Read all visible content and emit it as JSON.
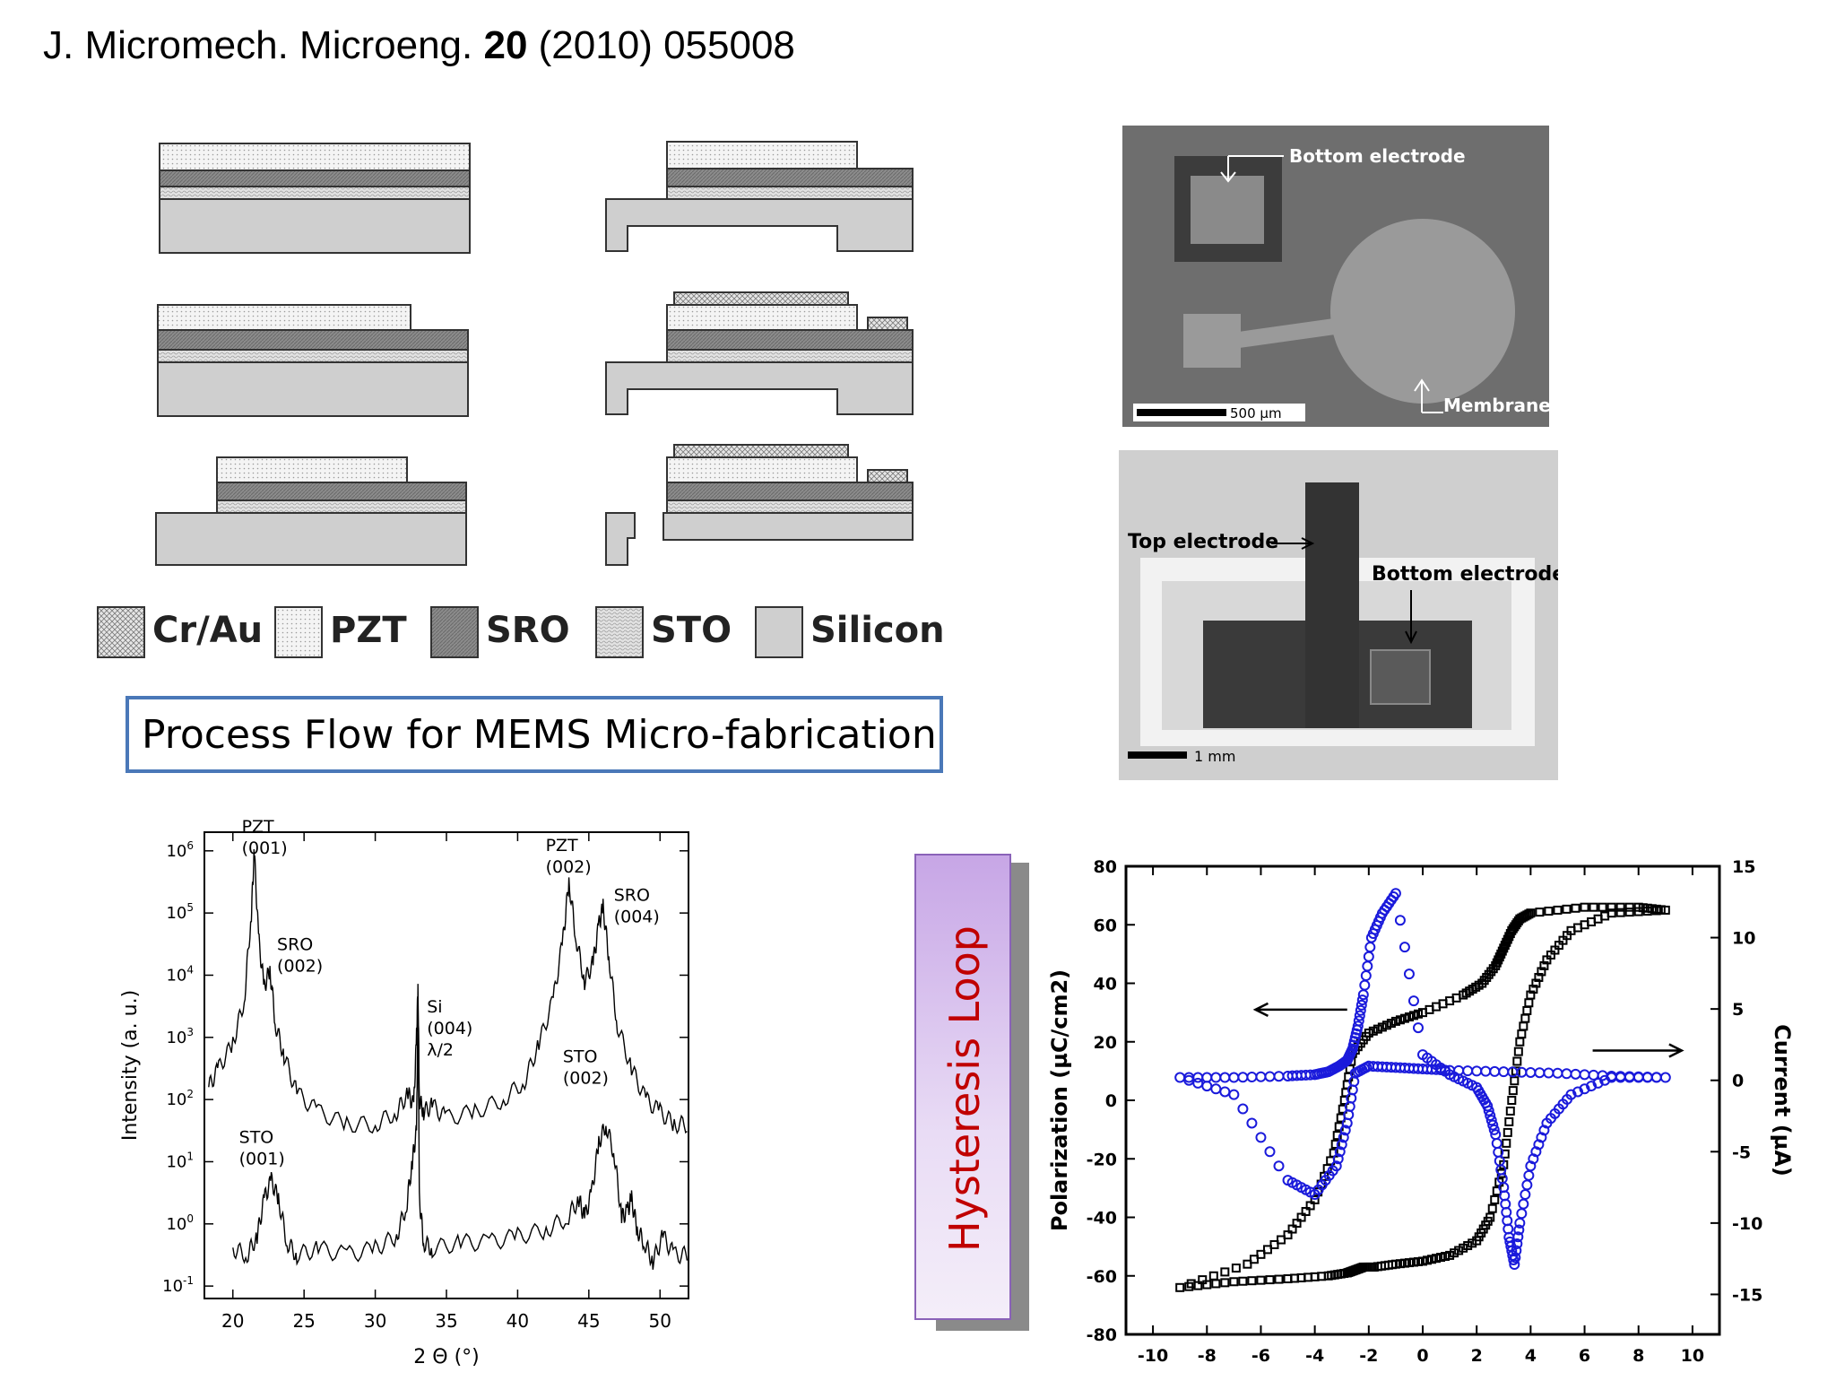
{
  "citation": {
    "journal": "J. Micromech. Microeng.",
    "volume": "20",
    "rest": "(2010) 055008"
  },
  "legend": [
    {
      "label": "Cr/Au",
      "pattern": "crosshatch"
    },
    {
      "label": "PZT",
      "pattern": "dots"
    },
    {
      "label": "SRO",
      "pattern": "dense-hatch"
    },
    {
      "label": "STO",
      "pattern": "wave-hatch"
    },
    {
      "label": "Silicon",
      "pattern": "solid"
    }
  ],
  "process_title": "Process Flow for MEMS Micro-fabrication",
  "micrograph_top": {
    "bottom_electrode": "Bottom electrode",
    "membrane": "Membrane",
    "scale": "500 µm"
  },
  "micrograph_bottom": {
    "top_electrode": "Top electrode",
    "bottom_electrode": "Bottom electrode",
    "scale": "1 mm"
  },
  "hysteresis_banner": "Hysteresis Loop",
  "chart_data": [
    {
      "type": "line",
      "title": "",
      "xlabel": "2 Θ (°)",
      "ylabel": "Intensity (a. u.)",
      "xlim": [
        18,
        52
      ],
      "ylim_log10": [
        -1.2,
        6.3
      ],
      "yscale": "log",
      "xticks": [
        "20",
        "25",
        "30",
        "35",
        "40",
        "45",
        "50"
      ],
      "yticks": [
        "10-1",
        "100",
        "101",
        "102",
        "103",
        "104",
        "105",
        "106"
      ],
      "peak_labels": [
        {
          "text1": "PZT",
          "text2": "(001)",
          "x": 21.5
        },
        {
          "text1": "SRO",
          "text2": "(002)",
          "x": 22.6
        },
        {
          "text1": "Si",
          "text2": "(004)",
          "text3": "λ/2",
          "x": 33.0
        },
        {
          "text1": "PZT",
          "text2": "(002)",
          "x": 43.6
        },
        {
          "text1": "SRO",
          "text2": "(004)",
          "x": 46.0
        },
        {
          "text1": "STO",
          "text2": "(001)",
          "x": 22.7
        },
        {
          "text1": "STO",
          "text2": "(002)",
          "x": 46.2
        }
      ],
      "series": [
        {
          "x": [
            18.3,
            19,
            20,
            20.8,
            21.3,
            21.5,
            21.8,
            22.2,
            22.6,
            23,
            23.6,
            24.5,
            26,
            28,
            30,
            31.5,
            32.3,
            32.7,
            32.9,
            33.0,
            33.1,
            33.4,
            34,
            35,
            37,
            39,
            40.5,
            41.5,
            42.5,
            43.2,
            43.6,
            44.1,
            44.7,
            45.3,
            45.7,
            46.0,
            46.4,
            47,
            48,
            49,
            50,
            51,
            52
          ],
          "y": [
            2.2,
            2.5,
            2.9,
            3.6,
            5.0,
            6.0,
            4.6,
            3.8,
            4.1,
            3.2,
            2.7,
            2.1,
            1.8,
            1.6,
            1.6,
            1.8,
            2.1,
            1.9,
            3.0,
            3.8,
            2.0,
            1.8,
            1.9,
            1.7,
            1.8,
            2.0,
            2.3,
            2.9,
            3.6,
            4.6,
            5.5,
            4.6,
            3.9,
            4.2,
            4.8,
            5.1,
            4.3,
            3.2,
            2.5,
            2.0,
            1.8,
            1.6,
            1.6
          ]
        },
        {
          "x": [
            20,
            21,
            21.7,
            22.2,
            22.7,
            23.2,
            23.8,
            24.5,
            26,
            28,
            30,
            31.5,
            32.2,
            32.6,
            32.9,
            33.0,
            33.1,
            33.4,
            34,
            36,
            38,
            40,
            42,
            43.5,
            44.3,
            44.7,
            45.2,
            45.7,
            46.2,
            46.8,
            47.3,
            47.7,
            48,
            48.4,
            48.9,
            49.5,
            50.2,
            51,
            52
          ],
          "y": [
            -0.4,
            -0.5,
            -0.2,
            0.4,
            0.7,
            0.4,
            -0.3,
            -0.5,
            -0.4,
            -0.5,
            -0.4,
            -0.2,
            0.3,
            1.0,
            1.5,
            3.5,
            0.4,
            -0.3,
            -0.4,
            -0.3,
            -0.3,
            -0.2,
            -0.1,
            0.1,
            0.4,
            0.1,
            0.5,
            1.3,
            1.6,
            1.1,
            0.1,
            0.2,
            0.4,
            -0.1,
            -0.3,
            -0.6,
            -0.2,
            -0.5,
            -0.5
          ]
        }
      ]
    },
    {
      "type": "scatter",
      "title": "",
      "xlabel": "Voltage (V)",
      "ylabel": "Polarization (µC/cm2)",
      "y2label": "Current (µA)",
      "xlim": [
        -11,
        11
      ],
      "ylim": [
        -80,
        80
      ],
      "y2lim": [
        -17.8,
        15
      ],
      "xticks": [
        "-10",
        "-8",
        "-6",
        "-4",
        "-2",
        "0",
        "2",
        "4",
        "6",
        "8",
        "10"
      ],
      "yticks": [
        "-80",
        "-60",
        "-40",
        "-20",
        "0",
        "20",
        "40",
        "60",
        "80"
      ],
      "y2ticks": [
        "-15",
        "-10",
        "-5",
        "0",
        "5",
        "10",
        "15"
      ],
      "series": [
        {
          "name": "Polarization",
          "color": "#000000",
          "x": [
            -9,
            -7,
            -5,
            -3.5,
            -2.8,
            -2.5,
            -2.2,
            -1.8,
            -1,
            0,
            1,
            2,
            2.5,
            3,
            3.3,
            3.6,
            4,
            4.6,
            5.5,
            7,
            9,
            8,
            6,
            4,
            3.6,
            3.3,
            3,
            2.7,
            2.2,
            1.5,
            0,
            -1,
            -2,
            -2.6,
            -2.9,
            -3.3,
            -4,
            -5,
            -6.5,
            -9
          ],
          "y": [
            -64,
            -62,
            -61,
            -60,
            -59,
            -58,
            -57,
            -57,
            -56,
            -55,
            -53,
            -48,
            -40,
            -22,
            0,
            20,
            36,
            48,
            58,
            64,
            65,
            66,
            66,
            64,
            62,
            58,
            52,
            46,
            40,
            36,
            30,
            27,
            23,
            16,
            0,
            -18,
            -34,
            -46,
            -56,
            -64
          ]
        },
        {
          "name": "Current",
          "color": "#1a1adb",
          "x": [
            -9,
            -7,
            -5,
            -4,
            -3.5,
            -3.1,
            -2.8,
            -2.6,
            -2.4,
            -2.2,
            -1.9,
            -1.5,
            -1,
            0,
            1,
            2,
            2.4,
            2.7,
            3,
            3.2,
            3.4,
            3.6,
            4,
            4.6,
            5.5,
            7,
            9,
            7,
            5,
            3,
            1,
            0,
            -1,
            -2,
            -2.5,
            -2.8,
            -3.2,
            -4,
            -5,
            -7,
            -9
          ],
          "y": [
            0.2,
            0.2,
            0.3,
            0.4,
            0.6,
            1.0,
            1.4,
            2.2,
            3.8,
            6.0,
            10.0,
            11.7,
            13.1,
            1.8,
            0.4,
            -0.5,
            -1.8,
            -3.8,
            -7.5,
            -11.0,
            -12.9,
            -10.0,
            -6.0,
            -3.0,
            -1.0,
            0.2,
            0.2,
            0.3,
            0.5,
            0.6,
            0.7,
            0.8,
            0.9,
            1.0,
            0.5,
            -3.0,
            -6.0,
            -8.0,
            -7.0,
            -1.0,
            0.2
          ]
        }
      ]
    }
  ]
}
